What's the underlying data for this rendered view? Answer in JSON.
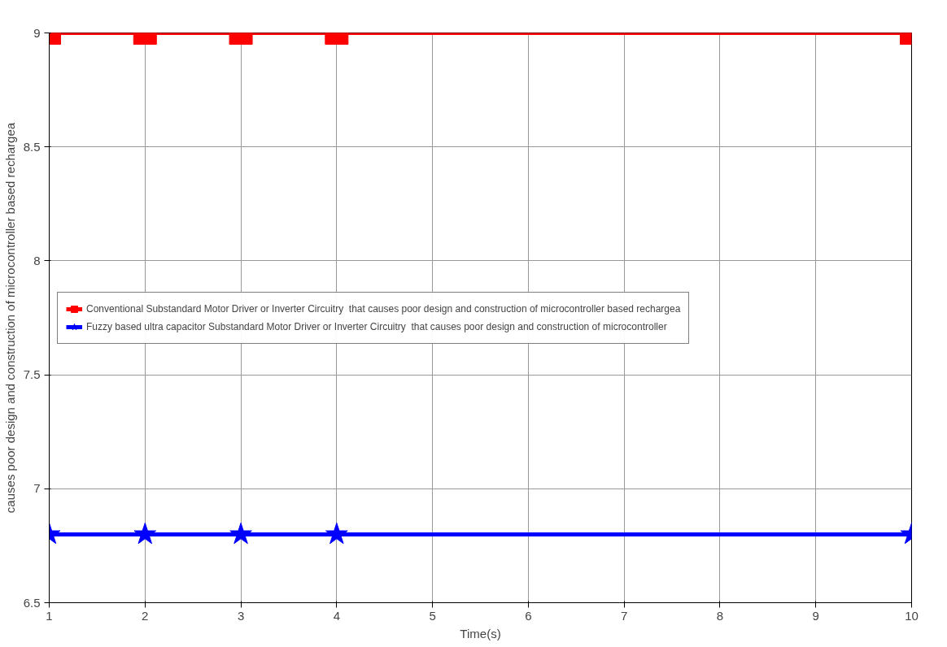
{
  "chart_data": {
    "type": "line",
    "xlabel": "Time(s)",
    "ylabel": "causes poor design and construction of microcontroller based rechargea",
    "x": [
      1,
      2,
      3,
      4,
      10
    ],
    "series": [
      {
        "name": "Conventional Substandard Motor Driver or Inverter Circuitry  that causes poor design and construction of microcontroller based rechargea",
        "color": "#ff0000",
        "marker": "square",
        "values": [
          9,
          9,
          9,
          9,
          9
        ]
      },
      {
        "name": "Fuzzy based ultra capacitor Substandard Motor Driver or Inverter Circuitry  that causes poor design and construction of microcontroller",
        "color": "#0000ff",
        "marker": "star",
        "values": [
          6.8,
          6.8,
          6.8,
          6.8,
          6.8
        ]
      }
    ],
    "xlim": [
      1,
      10
    ],
    "xticks": [
      1,
      2,
      3,
      4,
      5,
      6,
      7,
      8,
      9,
      10
    ],
    "ylim": [
      6.5,
      9
    ],
    "yticks": [
      6.5,
      7,
      7.5,
      8,
      8.5,
      9
    ],
    "grid": true,
    "legend": "left",
    "line_style": "solid"
  }
}
